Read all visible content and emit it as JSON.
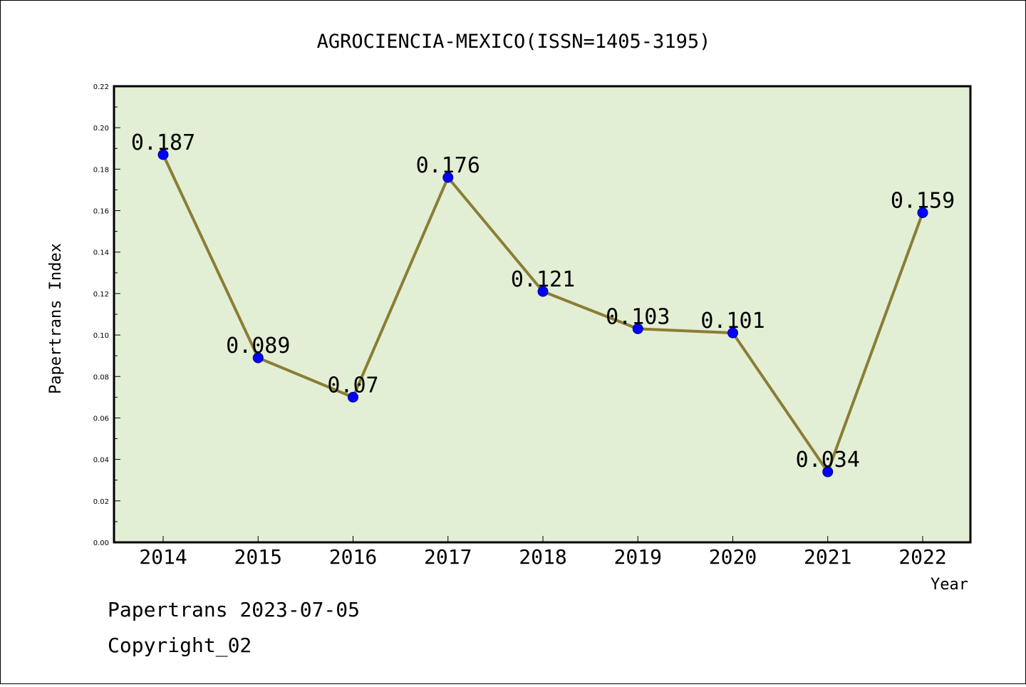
{
  "chart_data": {
    "type": "line",
    "title": "AGROCIENCIA-MEXICO(ISSN=1405-3195)",
    "xlabel": "Year",
    "ylabel": "Papertrans Index",
    "categories": [
      "2014",
      "2015",
      "2016",
      "2017",
      "2018",
      "2019",
      "2020",
      "2021",
      "2022"
    ],
    "series": [
      {
        "values": [
          0.187,
          0.089,
          0.07,
          0.176,
          0.121,
          0.103,
          0.101,
          0.034,
          0.159
        ],
        "labels": [
          "0.187",
          "0.089",
          "0.07",
          "0.176",
          "0.121",
          "0.103",
          "0.101",
          "0.034",
          "0.159"
        ]
      }
    ],
    "ylim": [
      0,
      0.22
    ],
    "yticks": [
      "0.00",
      "0.02",
      "0.04",
      "0.06",
      "0.08",
      "0.10",
      "0.12",
      "0.14",
      "0.16",
      "0.18",
      "0.20",
      "0.22"
    ],
    "grid": false,
    "colors": {
      "plot_background": "#e2efd5",
      "line": "#8b7d35",
      "marker": "#0000ff"
    }
  },
  "footer": {
    "line1": "Papertrans 2023-07-05",
    "line2": "Copyright_02"
  }
}
